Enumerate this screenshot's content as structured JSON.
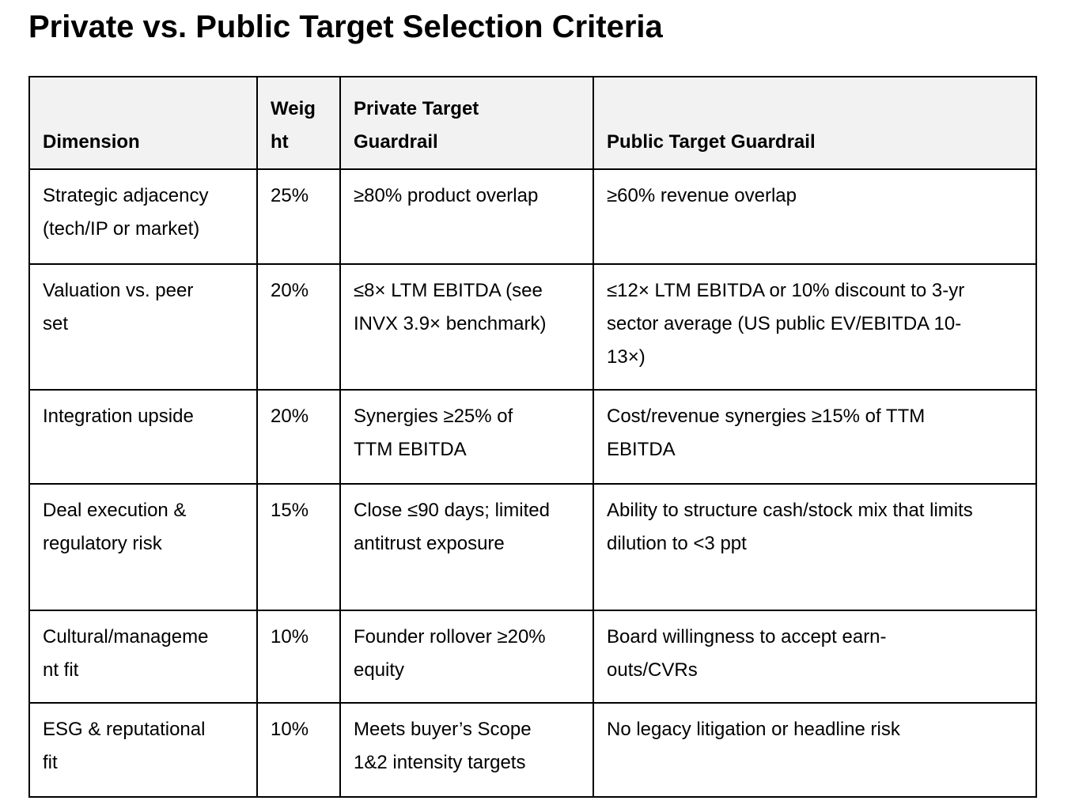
{
  "page": {
    "title": "Private vs. Public Target Selection Criteria"
  },
  "colors": {
    "header_bg": "#f2f2f2",
    "border": "#000000",
    "text": "#000000",
    "background": "#ffffff"
  },
  "table": {
    "columns": {
      "dimension": "Dimension",
      "weight": "Weight",
      "private": "Private Target Guardrail",
      "public": "Public Target Guardrail"
    },
    "rows": [
      {
        "dimension": "Strategic adjacency (tech/IP or market)",
        "weight": "25%",
        "private": "≥80% product overlap",
        "public": "≥60% revenue overlap"
      },
      {
        "dimension": "Valuation vs. peer set",
        "weight": "20%",
        "private": "≤8× LTM EBITDA (see INVX 3.9× benchmark)",
        "public": "≤12× LTM EBITDA or 10% discount to 3-yr sector average (US public EV/EBITDA 10-13×)"
      },
      {
        "dimension": "Integration upside",
        "weight": "20%",
        "private": "Synergies ≥25% of TTM EBITDA",
        "public": "Cost/revenue synergies ≥15% of TTM EBITDA"
      },
      {
        "dimension": "Deal execution & regulatory risk",
        "weight": "15%",
        "private": "Close ≤90 days; limited antitrust exposure",
        "public": "Ability to structure cash/stock mix that limits dilution to <3 ppt"
      },
      {
        "dimension": "Cultural/management fit",
        "weight": "10%",
        "private": "Founder rollover ≥20% equity",
        "public": "Board willingness to accept earn-outs/CVRs"
      },
      {
        "dimension": "ESG & reputational fit",
        "weight": "10%",
        "private": "Meets buyer’s Scope 1&2 intensity targets",
        "public": "No legacy litigation or headline risk"
      }
    ]
  }
}
